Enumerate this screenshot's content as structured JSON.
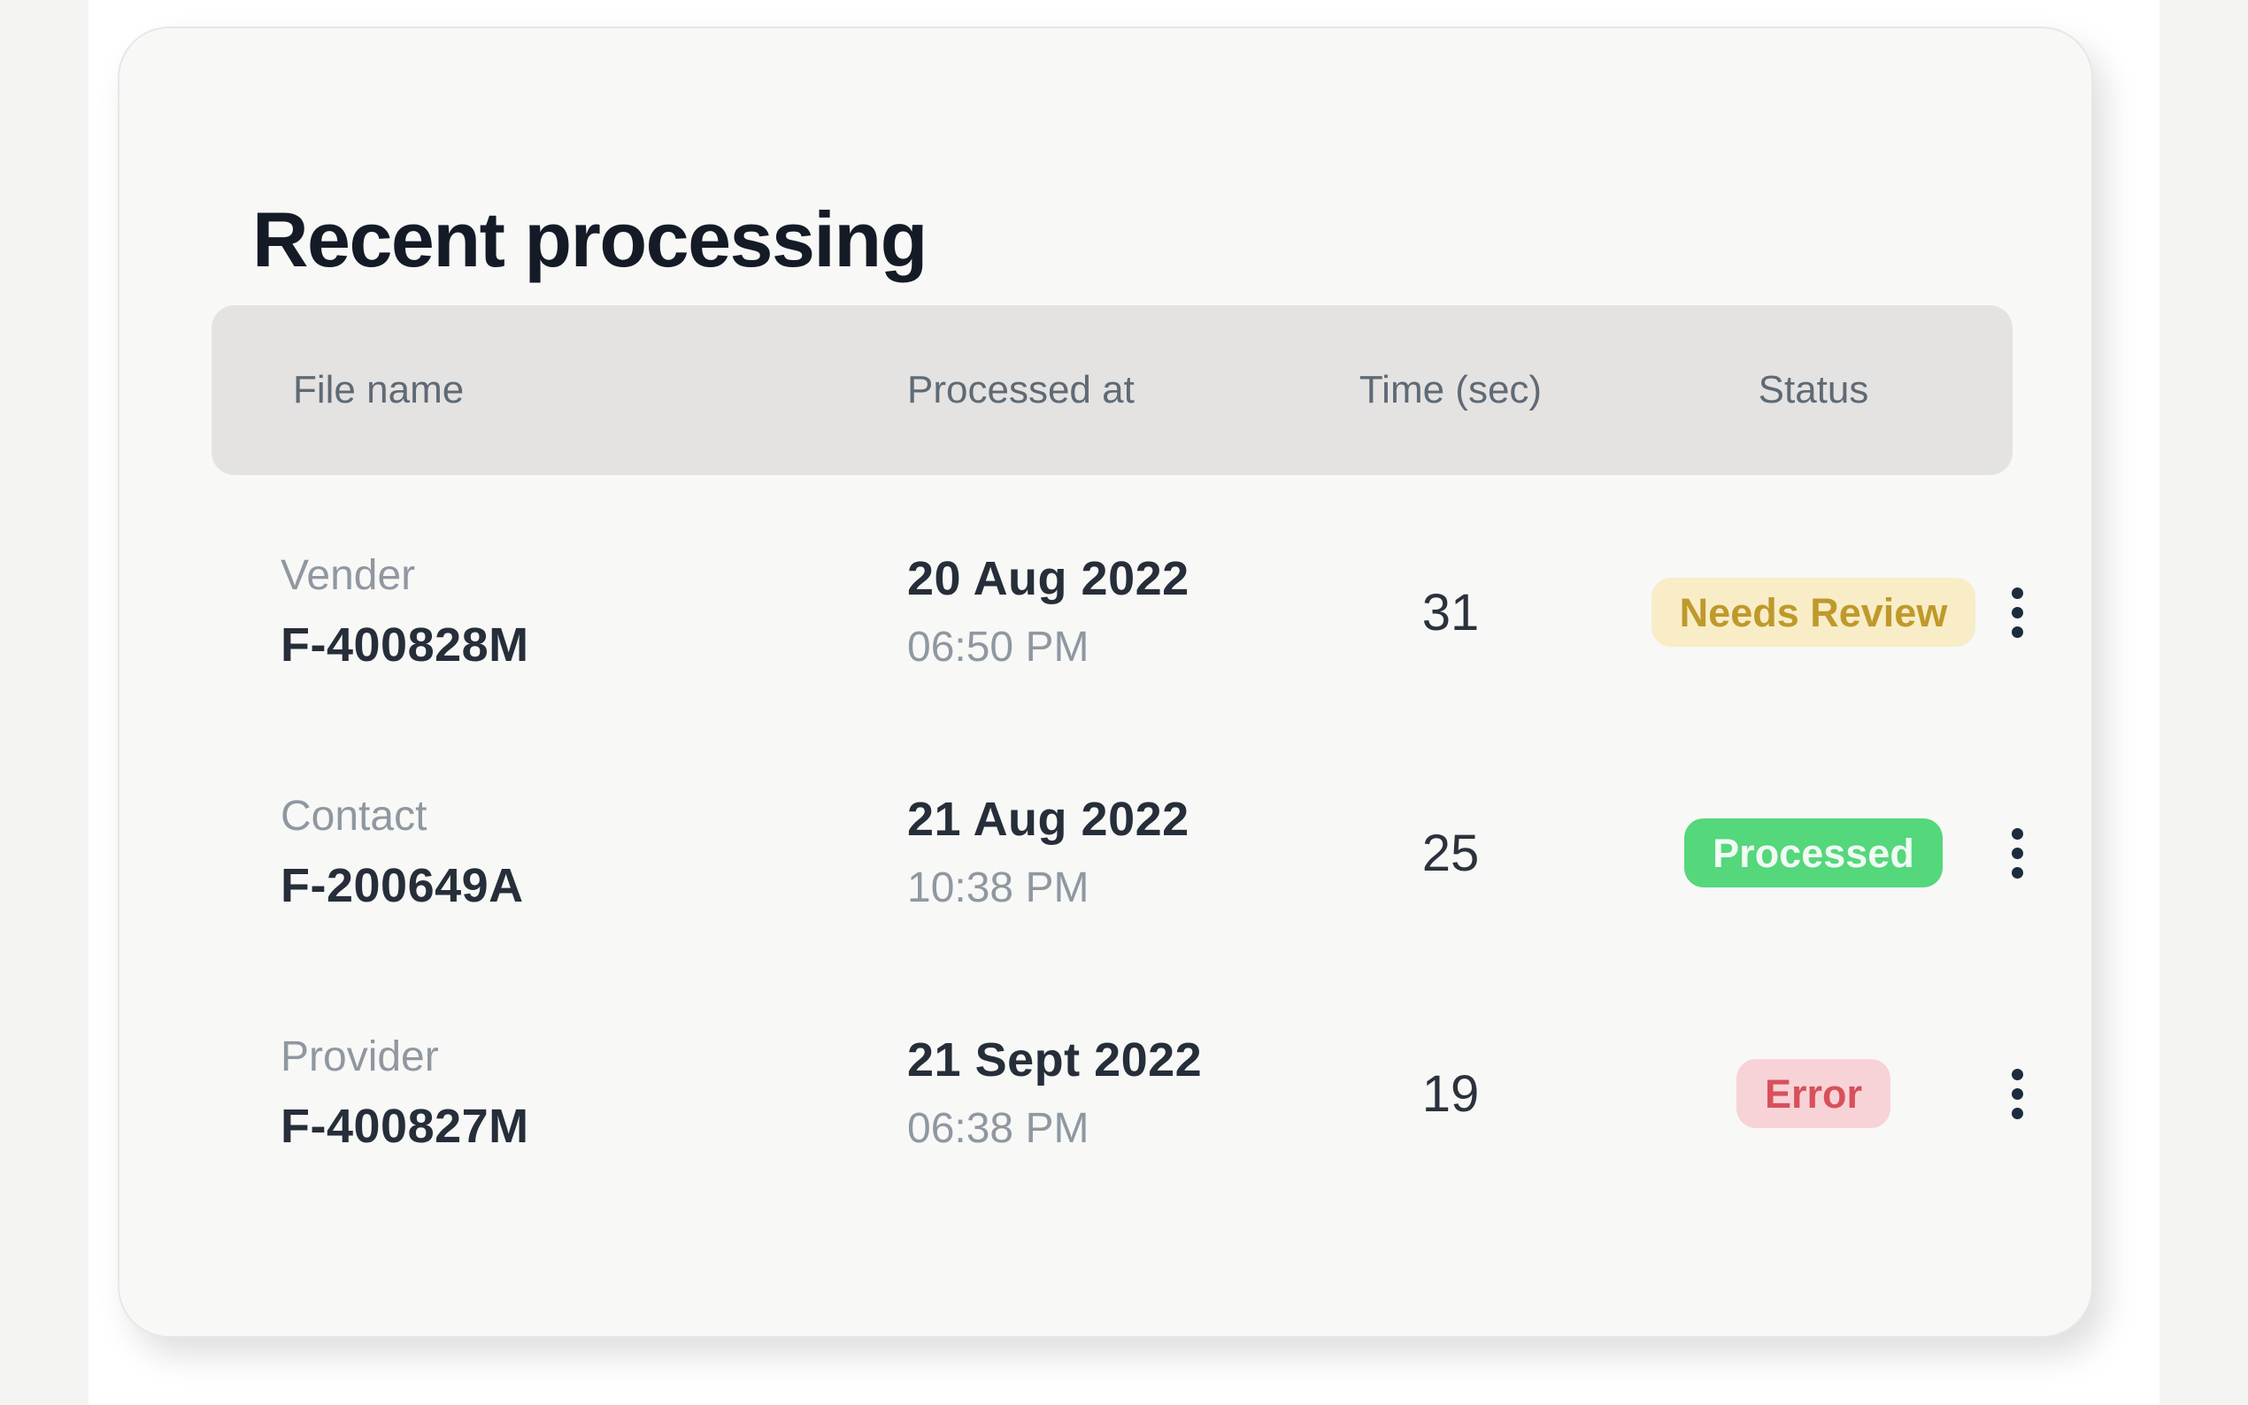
{
  "card": {
    "title": "Recent processing",
    "table": {
      "headers": [
        "File name",
        "Processed at",
        "Time (sec)",
        "Status"
      ],
      "rows": [
        {
          "file_label": "Vender",
          "file_id": "F-400828M",
          "processed_date": "20 Aug 2022",
          "processed_time": "06:50 PM",
          "duration_sec": "31",
          "status": "Needs Review",
          "status_type": "warning"
        },
        {
          "file_label": "Contact",
          "file_id": "F-200649A",
          "processed_date": "21 Aug 2022",
          "processed_time": "10:38 PM",
          "duration_sec": "25",
          "status": "Processed",
          "status_type": "success"
        },
        {
          "file_label": "Provider",
          "file_id": "F-400827M",
          "processed_date": "21 Sept 2022",
          "processed_time": "06:38 PM",
          "duration_sec": "19",
          "status": "Error",
          "status_type": "error"
        }
      ]
    }
  },
  "icons": {
    "row_actions": "kebab-menu-icon"
  },
  "colors": {
    "page_bg": "#ffffff",
    "side_strip": "#f4f4f3",
    "card_bg": "#f8f8f7",
    "header_bar_bg": "#e4e3e2",
    "header_text": "#5f6a75",
    "title_text": "#141b26",
    "primary_text": "#262e39",
    "secondary_text": "#8f98a1",
    "warning_bg": "#f8edc7",
    "warning_text": "#bf992b",
    "success_bg": "#55d77c",
    "success_text": "#f0fbf4",
    "error_bg": "#f7d3d7",
    "error_text": "#d8505c",
    "kebab_dot": "#1d2c3d"
  }
}
